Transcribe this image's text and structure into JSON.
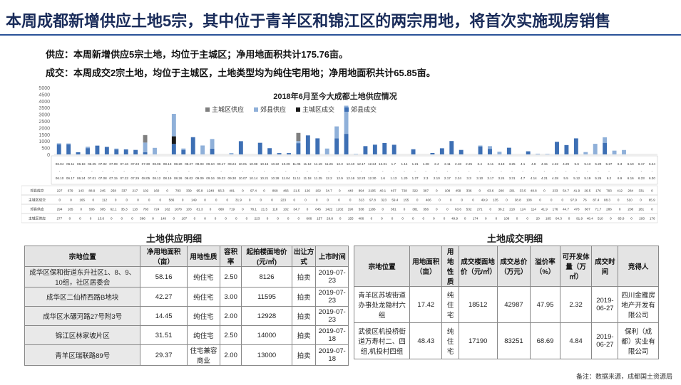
{
  "title": "本周成都新增供应土地5宗，其中位于青羊区和锦江区的两宗用地，将首次实施现房销售",
  "summary": {
    "supply": "供应：本周新增供应5宗土地，均位于主城区；净用地面积共计175.76亩。",
    "deal": "成交：本周成交2宗土地，均位于主城区，土地类型均为纯住宅用地；净用地面积共计65.85亩。"
  },
  "chart_data": {
    "type": "bar",
    "title": "2018年6月至今大成都土地供应情况",
    "ylim": [
      0,
      5000
    ],
    "yticks": [
      0,
      500,
      1000,
      1500,
      2000,
      2500,
      3000,
      3500,
      4000,
      4500,
      5000
    ],
    "legend_position": "top",
    "series": [
      {
        "name": "主城区供应",
        "color": "#7f7f7f",
        "values": [
          0,
          0,
          0,
          0,
          0,
          0,
          0,
          0,
          0,
          0,
          586,
          0,
          0,
          0,
          0,
          0,
          0,
          0,
          0,
          0,
          0,
          0,
          0,
          0,
          0,
          0,
          0,
          0,
          0,
          0,
          0,
          0,
          0,
          0,
          0,
          0,
          0,
          0,
          0,
          0,
          0,
          0,
          0,
          0,
          0,
          0,
          0,
          0,
          0,
          0,
          0,
          0,
          0,
          0,
          0,
          0,
          0,
          0,
          0,
          0,
          0,
          0,
          0
        ]
      },
      {
        "name": "郊县供应",
        "color": "#8fb0d9",
        "values": [
          0,
          0,
          0,
          0,
          0,
          0,
          0,
          0,
          0,
          0,
          0,
          0,
          0,
          0,
          0,
          0,
          0,
          0,
          0,
          0,
          0,
          0,
          0,
          0,
          0,
          0,
          0,
          0,
          0,
          0,
          0,
          0,
          0,
          0,
          0,
          0,
          0,
          0,
          0,
          0,
          0,
          0,
          0,
          0,
          0,
          0,
          0,
          0,
          0,
          0,
          0,
          0,
          0,
          0,
          0,
          0,
          0,
          0,
          0,
          0,
          0,
          0,
          0
        ]
      },
      {
        "name": "主城区成交",
        "color": "#1a1a1a",
        "values": [
          0,
          0,
          0,
          0,
          0,
          0,
          0,
          0,
          0,
          0,
          0,
          0,
          0,
          0,
          0,
          0,
          0,
          0,
          0,
          0,
          0,
          0,
          0,
          0,
          0,
          0,
          0,
          0,
          0,
          0,
          0,
          0,
          0,
          0,
          0,
          0,
          0,
          0,
          0,
          0,
          0,
          0,
          0,
          0,
          0,
          0,
          0,
          0,
          0,
          0,
          0,
          0,
          0,
          0,
          0,
          0,
          0,
          0,
          0,
          0,
          0,
          0,
          0
        ]
      },
      {
        "name": "郊县成交",
        "color": "#3d6fb4",
        "values": [
          0,
          0,
          0,
          0,
          0,
          0,
          0,
          0,
          0,
          0,
          0,
          0,
          0,
          0,
          0,
          0,
          0,
          0,
          0,
          0,
          0,
          0,
          0,
          0,
          0,
          0,
          0,
          0,
          0,
          0,
          0,
          0,
          0,
          0,
          0,
          0,
          0,
          0,
          0,
          0,
          0,
          0,
          0,
          0,
          0,
          0,
          0,
          0,
          0,
          0,
          0,
          0,
          0,
          0,
          0,
          0,
          0,
          0,
          0,
          0,
          0,
          0,
          0
        ]
      }
    ],
    "stacks": [
      [
        0,
        70,
        0,
        760
      ],
      [
        0,
        60,
        0,
        760
      ],
      [
        0,
        0,
        0,
        165
      ],
      [
        0,
        106,
        0,
        472
      ],
      [
        0,
        0,
        0,
        658
      ],
      [
        0,
        0,
        0,
        565
      ],
      [
        0,
        59,
        0,
        381
      ],
      [
        0,
        0,
        0,
        379
      ],
      [
        0,
        0,
        0,
        337
      ],
      [
        560,
        724,
        0,
        162
      ],
      [
        0,
        490,
        0,
        0
      ],
      [
        0,
        0,
        0,
        0
      ],
      [
        0,
        1678,
        570,
        783
      ],
      [
        0,
        103,
        0,
        339
      ],
      [
        0,
        0,
        0,
        1290
      ],
      [
        0,
        668,
        0,
        0
      ],
      [
        0,
        719,
        0,
        434
      ],
      [
        0,
        0,
        0,
        0
      ],
      [
        0,
        101,
        0,
        0
      ],
      [
        0,
        0,
        0,
        990
      ],
      [
        0,
        0,
        0,
        0
      ],
      [
        0,
        0,
        0,
        870
      ],
      [
        0,
        0,
        0,
        466
      ],
      [
        0,
        0,
        0,
        100
      ],
      [
        0,
        0,
        0,
        100
      ],
      [
        606,
        157,
        0,
        845
      ],
      [
        0,
        0,
        0,
        1422
      ],
      [
        0,
        0,
        0,
        1202
      ],
      [
        0,
        440,
        0,
        0
      ],
      [
        0,
        894,
        0,
        1202
      ],
      [
        0,
        2105,
        0,
        1538
      ],
      [
        0,
        40,
        0,
        0
      ],
      [
        0,
        0,
        0,
        620
      ],
      [
        0,
        0,
        0,
        728
      ],
      [
        0,
        0,
        0,
        856
      ],
      [
        0,
        0,
        0,
        722
      ],
      [
        0,
        0,
        0,
        0
      ],
      [
        0,
        0,
        0,
        387
      ],
      [
        0,
        0,
        0,
        0
      ],
      [
        0,
        0,
        0,
        108
      ],
      [
        0,
        0,
        0,
        459
      ],
      [
        0,
        0,
        0,
        1000
      ],
      [
        0,
        0,
        0,
        336
      ],
      [
        0,
        0,
        0,
        0
      ],
      [
        0,
        63.6,
        0,
        600
      ],
      [
        0,
        200,
        0,
        420
      ],
      [
        0,
        201,
        0,
        0
      ],
      [
        0,
        0,
        0,
        500
      ],
      [
        0,
        0,
        0,
        0
      ],
      [
        0,
        0,
        0,
        233
      ],
      [
        0,
        54.7,
        0,
        0
      ],
      [
        0,
        41.9,
        0,
        0
      ],
      [
        0,
        0,
        0,
        944
      ],
      [
        0,
        0,
        0,
        700
      ],
      [
        0,
        0,
        0,
        1200
      ],
      [
        0,
        176,
        0,
        0
      ],
      [
        0,
        793,
        0,
        0
      ],
      [
        0,
        412,
        0,
        868
      ],
      [
        0,
        284,
        0,
        0
      ],
      [
        0,
        331,
        0,
        0
      ],
      [
        0,
        0,
        0,
        0
      ],
      [
        0,
        0,
        0,
        0
      ],
      [
        0,
        0,
        0,
        0
      ]
    ],
    "date_top": [
      "06.04",
      "06.11",
      "06.18",
      "06.25",
      "07.02",
      "07.09",
      "07.16",
      "07.23",
      "07.30",
      "08.06",
      "08.13",
      "08.20",
      "08.27",
      "09.03",
      "09.10",
      "09.17",
      "09.24",
      "10.01",
      "10.08",
      "10.15",
      "10.22",
      "10.29",
      "11.05",
      "11.12",
      "11.19",
      "11.26",
      "12.3",
      "12.10",
      "12.17",
      "12.24",
      "12.31",
      "1.7",
      "1.14",
      "1.21",
      "1.28",
      "2.4",
      "2.11",
      "2.18",
      "2.25",
      "3.4",
      "3.11",
      "3.18",
      "3.25",
      "4.1",
      "4.8",
      "4.15",
      "4.22",
      "4.29",
      "5.6",
      "5.13",
      "5.20",
      "5.27",
      "6.3",
      "6.10",
      "6.17",
      "6.24"
    ],
    "date_bottom": [
      "06.10",
      "06.17",
      "06.24",
      "07.01",
      "07.08",
      "07.15",
      "07.22",
      "07.29",
      "08.05",
      "08.12",
      "08.19",
      "08.26",
      "09.02",
      "09.09",
      "09.16",
      "09.23",
      "09.30",
      "10.07",
      "10.14",
      "10.21",
      "10.28",
      "11.04",
      "11.11",
      "11.18",
      "11.25",
      "12.2",
      "12.9",
      "12.16",
      "12.23",
      "12.30",
      "1.6",
      "1.13",
      "1.20",
      "1.27",
      "2.3",
      "2.10",
      "2.17",
      "2.24",
      "3.3",
      "3.10",
      "3.17",
      "3.24",
      "3.31",
      "4.7",
      "4.14",
      "4.21",
      "4.28",
      "5.5",
      "5.12",
      "5.19",
      "5.26",
      "6.2",
      "6.9",
      "6.16",
      "6.23",
      "6.30"
    ],
    "table_rows": [
      {
        "label": "郊县成交",
        "values": "227 679 143 88.9 245 258 337 217 102 160 0 783 339 95.8 1248 66.3 481 0 97.4 0 869 466 21.5 126 102 34.7 0 440 894 2105 40.1 407 728 322 387 0 108 459 336 0 63.6 200 201 33.5 48.8 0 233 54.7 41.9 26.5 176 793 412 284 331 0"
      },
      {
        "label": "主城区成交",
        "values": "0 0 165 0 112 0 0 0 0 0 586 0 149 0 0 0 31.9 0 0 0 223 0 0 0 0 0 0 313 97.8 323 59.4 155 0 406 0 0 0 0 49.9 135 0 38.8 108 0 0 0 97.9 76 87.4 88.3 0 510 0 65.9"
      },
      {
        "label": "郊县供应",
        "values": "294 165 0 506 305 62.1 35.3 118 783 724 162 1678 103 81.3 0 668 719 0 78.1 21.5 118 102 34.7 0 845 1422 1202 190 538 1186 0 381 0 381 356 0 0 63.6 532 271 0 36.2 218 124 114 41.9 176 44.7 478 807 71.7 286 0 208 281 0"
      },
      {
        "label": "主城区供应",
        "values": "277 0 0 0 13.6 0 0 0 586 0 149 0 107 0 0 0 0 0 0 223 0 0 0 0 606 157 29.8 0 155 406 0 0 0 0 0 0 0 0 49.9 0 174 0 0 108 0 0 20 185 84.3 0 91.9 48.4 510 0 65.9 0 293 176"
      }
    ]
  },
  "supply_table": {
    "heading": "土地供应明细",
    "headers": [
      "宗地位置",
      "净用地面积（亩）",
      "用地性质",
      "容积率",
      "起拍楼面地价(元/㎡)",
      "出让方式",
      "上市时间"
    ],
    "rows": [
      [
        "成华区保和街道东升社区1、8、9、10组，社区居委会",
        "58.16",
        "纯住宅",
        "2.50",
        "8126",
        "拍卖",
        "2019-07-23"
      ],
      [
        "成华区二仙桥西路B地块",
        "42.27",
        "纯住宅",
        "3.00",
        "11595",
        "拍卖",
        "2019-07-23"
      ],
      [
        "成华区水碾河路27号附3号",
        "14.45",
        "纯住宅",
        "2.00",
        "12928",
        "拍卖",
        "2019-07-23"
      ],
      [
        "锦江区林家坡片区",
        "31.51",
        "纯住宅",
        "2.50",
        "14000",
        "拍卖",
        "2019-07-18"
      ],
      [
        "青羊区瑞联路89号",
        "29.37",
        "住宅兼容商业",
        "2.00",
        "13000",
        "拍卖",
        "2019-07-18"
      ]
    ]
  },
  "deal_table": {
    "heading": "土地成交明细",
    "headers": [
      "宗地位置",
      "用地面积（亩）",
      "用地性质",
      "成交楼面地价（元/㎡）",
      "成交总价（万元）",
      "溢价率（%）",
      "可开发体量（万㎡）",
      "成交时间",
      "竞得人"
    ],
    "rows": [
      [
        "青羊区苏坡街道办事处龙隐村六组",
        "17.42",
        "纯住宅",
        "18512",
        "42987",
        "47.95",
        "2.32",
        "2019-06-27",
        "四川金雁房地产开发有限公司"
      ],
      [
        "武侯区机投桥街道万寿村二、四组,机投村四组",
        "48.43",
        "纯住宅",
        "17190",
        "83251",
        "68.69",
        "4.84",
        "2019-06-27",
        "保利（成都）实业有限公司"
      ]
    ]
  },
  "footnote": "备注：数据来源，成都国土资源局"
}
